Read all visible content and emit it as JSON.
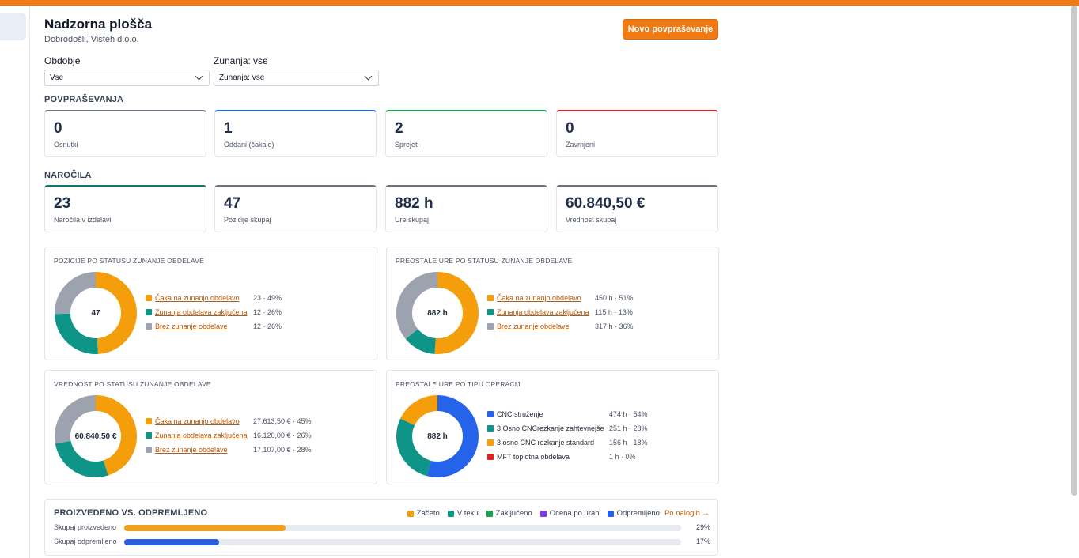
{
  "header": {
    "title": "Nadzorna plošča",
    "subtitle": "Dobrodošli, Visteh d.o.o.",
    "new_request_label": "Novo povpraševanje"
  },
  "filters": {
    "period_label": "Obdobje",
    "period_value": "Vse",
    "external_label": "Zunanja: vse",
    "external_value": "Zunanja: vse"
  },
  "inquiries": {
    "section_title": "POVPRAŠEVANJA",
    "cards": [
      {
        "value": "0",
        "label": "Osnutki",
        "accent": "#6b7280"
      },
      {
        "value": "1",
        "label": "Oddani (čakajo)",
        "accent": "#2563eb"
      },
      {
        "value": "2",
        "label": "Sprejeti",
        "accent": "#16a34a"
      },
      {
        "value": "0",
        "label": "Zavrnjeni",
        "accent": "#dc2626"
      }
    ]
  },
  "orders": {
    "section_title": "NAROČILA",
    "cards": [
      {
        "value": "23",
        "label": "Naročila v izdelavi",
        "accent": "#0f766e"
      },
      {
        "value": "47",
        "label": "Pozicije skupaj",
        "accent": "#6b7280"
      },
      {
        "value": "882 h",
        "label": "Ure skupaj",
        "accent": "#6b7280"
      },
      {
        "value": "60.840,50 €",
        "label": "Vrednost skupaj",
        "accent": "#6b7280"
      }
    ]
  },
  "charts": [
    {
      "title": "POZICIJE PO STATUSU ZUNANJE OBDELAVE",
      "center": "47",
      "items": [
        {
          "name": "Čaka na zunanjo obdelavo",
          "value": "23 · 49%",
          "pct": 49,
          "color": "#f59e0b",
          "link": true
        },
        {
          "name": "Zunanja obdelava zaključena",
          "value": "12 · 26%",
          "pct": 25.5,
          "color": "#0f9488",
          "link": true
        },
        {
          "name": "Brez zunanje obdelave",
          "value": "12 · 26%",
          "pct": 25.5,
          "color": "#9ca3af",
          "link": true
        }
      ]
    },
    {
      "title": "PREOSTALE URE PO STATUSU ZUNANJE OBDELAVE",
      "center": "882 h",
      "items": [
        {
          "name": "Čaka na zunanjo obdelavo",
          "value": "450 h · 51%",
          "pct": 51,
          "color": "#f59e0b",
          "link": true
        },
        {
          "name": "Zunanja obdelava zaključena",
          "value": "115 h · 13%",
          "pct": 13,
          "color": "#0f9488",
          "link": true
        },
        {
          "name": "Brez zunanje obdelave",
          "value": "317 h · 36%",
          "pct": 36,
          "color": "#9ca3af",
          "link": true
        }
      ]
    },
    {
      "title": "VREDNOST PO STATUSU ZUNANJE OBDELAVE",
      "center": "60.840,50 €",
      "items": [
        {
          "name": "Čaka na zunanjo obdelavo",
          "value": "27.613,50 € · 45%",
          "pct": 45,
          "color": "#f59e0b",
          "link": true
        },
        {
          "name": "Zunanja obdelava zaključena",
          "value": "16.120,00 € · 26%",
          "pct": 27,
          "color": "#0f9488",
          "link": true
        },
        {
          "name": "Brez zunanje obdelave",
          "value": "17.107,00 € · 28%",
          "pct": 28,
          "color": "#9ca3af",
          "link": true
        }
      ]
    },
    {
      "title": "PREOSTALE URE PO TIPU OPERACIJ",
      "center": "882 h",
      "items": [
        {
          "name": "CNC struženje",
          "value": "474 h · 54%",
          "pct": 54,
          "color": "#2563eb",
          "link": false
        },
        {
          "name": "3 Osno CNCrezkanje zahtevnejše",
          "value": "251 h · 28%",
          "pct": 28,
          "color": "#0f9488",
          "link": false
        },
        {
          "name": "3 osno CNC rezkanje standard",
          "value": "156 h · 18%",
          "pct": 18,
          "color": "#f59e0b",
          "link": false
        },
        {
          "name": "MFT toplotna obdelava",
          "value": "1 h · 0%",
          "pct": 0,
          "color": "#dc2626",
          "link": false
        }
      ]
    }
  ],
  "production": {
    "title": "PROIZVEDENO VS. ODPREMLJENO",
    "legend": [
      {
        "label": "Začeto",
        "color": "#f59e0b"
      },
      {
        "label": "V teku",
        "color": "#0f9488"
      },
      {
        "label": "Zaključeno",
        "color": "#16a34a"
      },
      {
        "label": "Ocena po urah",
        "color": "#7c3aed"
      },
      {
        "label": "Odpremljeno",
        "color": "#2563eb"
      }
    ],
    "link_label": "Po nalogih →",
    "rows": [
      {
        "label": "Skupaj proizvedeno",
        "percent_label": "29%",
        "fraction": 0.29,
        "color": "#f0a01e"
      },
      {
        "label": "Skupaj odpremljeno",
        "percent_label": "17%",
        "fraction": 0.17,
        "color": "#2b5fd9"
      }
    ]
  }
}
